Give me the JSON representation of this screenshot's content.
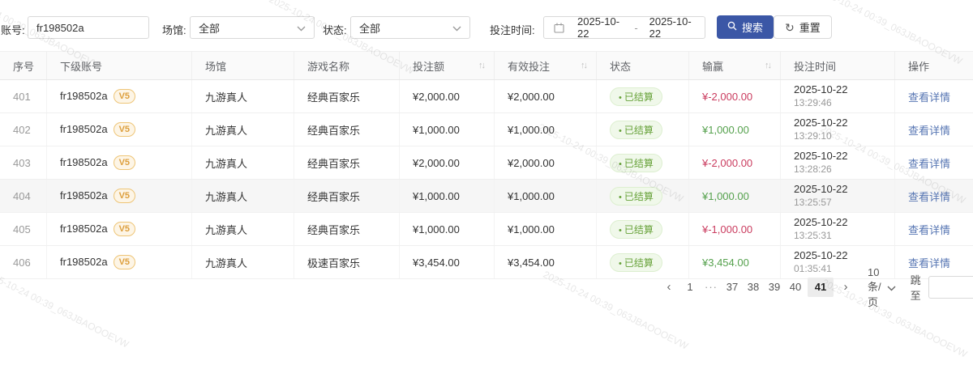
{
  "watermark": {
    "text": "2025-10-24 00:39_063JBAOOOEVW"
  },
  "filters": {
    "account": {
      "label": "账号:",
      "value": "fr198502a"
    },
    "venue": {
      "label": "场馆:",
      "value": "全部"
    },
    "status": {
      "label": "状态:",
      "value": "全部"
    },
    "bet_time": {
      "label": "投注时间:",
      "start": "2025-10-22",
      "separator": "-",
      "end": "2025-10-22"
    },
    "search_button": "搜索",
    "reset_button": "重置",
    "reset_icon_glyph": "↻"
  },
  "table": {
    "columns": [
      {
        "id": "index",
        "label": "序号",
        "sortable": false
      },
      {
        "id": "sub-account",
        "label": "下级账号",
        "sortable": false
      },
      {
        "id": "venue",
        "label": "场馆",
        "sortable": false
      },
      {
        "id": "game-name",
        "label": "游戏名称",
        "sortable": false
      },
      {
        "id": "bet-amount",
        "label": "投注额",
        "sortable": true
      },
      {
        "id": "valid-bet",
        "label": "有效投注",
        "sortable": true
      },
      {
        "id": "status",
        "label": "状态",
        "sortable": false
      },
      {
        "id": "win-loss",
        "label": "输赢",
        "sortable": true
      },
      {
        "id": "bet-time",
        "label": "投注时间",
        "sortable": false
      },
      {
        "id": "action",
        "label": "操作",
        "sortable": false
      }
    ],
    "sort_icon_glyph": "↑↓",
    "status_dot": "•",
    "rows": [
      {
        "index": "401",
        "account": "fr198502a",
        "level": "V5",
        "venue": "九游真人",
        "game": "经典百家乐",
        "bet_amount": "¥2,000.00",
        "valid_bet": "¥2,000.00",
        "status": "已结算",
        "win_loss": "¥-2,000.00",
        "win_loss_sign": "negative",
        "date": "2025-10-22",
        "time": "13:29:46",
        "action": "查看详情",
        "highlighted": false
      },
      {
        "index": "402",
        "account": "fr198502a",
        "level": "V5",
        "venue": "九游真人",
        "game": "经典百家乐",
        "bet_amount": "¥1,000.00",
        "valid_bet": "¥1,000.00",
        "status": "已结算",
        "win_loss": "¥1,000.00",
        "win_loss_sign": "positive",
        "date": "2025-10-22",
        "time": "13:29:10",
        "action": "查看详情",
        "highlighted": false
      },
      {
        "index": "403",
        "account": "fr198502a",
        "level": "V5",
        "venue": "九游真人",
        "game": "经典百家乐",
        "bet_amount": "¥2,000.00",
        "valid_bet": "¥2,000.00",
        "status": "已结算",
        "win_loss": "¥-2,000.00",
        "win_loss_sign": "negative",
        "date": "2025-10-22",
        "time": "13:28:26",
        "action": "查看详情",
        "highlighted": false
      },
      {
        "index": "404",
        "account": "fr198502a",
        "level": "V5",
        "venue": "九游真人",
        "game": "经典百家乐",
        "bet_amount": "¥1,000.00",
        "valid_bet": "¥1,000.00",
        "status": "已结算",
        "win_loss": "¥1,000.00",
        "win_loss_sign": "positive",
        "date": "2025-10-22",
        "time": "13:25:57",
        "action": "查看详情",
        "highlighted": true
      },
      {
        "index": "405",
        "account": "fr198502a",
        "level": "V5",
        "venue": "九游真人",
        "game": "经典百家乐",
        "bet_amount": "¥1,000.00",
        "valid_bet": "¥1,000.00",
        "status": "已结算",
        "win_loss": "¥-1,000.00",
        "win_loss_sign": "negative",
        "date": "2025-10-22",
        "time": "13:25:31",
        "action": "查看详情",
        "highlighted": false
      },
      {
        "index": "406",
        "account": "fr198502a",
        "level": "V5",
        "venue": "九游真人",
        "game": "极速百家乐",
        "bet_amount": "¥3,454.00",
        "valid_bet": "¥3,454.00",
        "status": "已结算",
        "win_loss": "¥3,454.00",
        "win_loss_sign": "positive",
        "date": "2025-10-22",
        "time": "01:35:41",
        "action": "查看详情",
        "highlighted": false
      }
    ]
  },
  "pagination": {
    "prev": "‹",
    "next": "›",
    "pages": [
      "1",
      "···",
      "37",
      "38",
      "39",
      "40",
      "41"
    ],
    "active": "41",
    "page_size": "10 条/页",
    "jump_label": "跳至"
  },
  "colors": {
    "primary_button": "#3b57a6",
    "link": "#5776b3",
    "positive": "#55a14d",
    "negative": "#ca3c5f",
    "status_badge_text": "#67a23a",
    "level_badge_text": "#dd9f3d"
  }
}
